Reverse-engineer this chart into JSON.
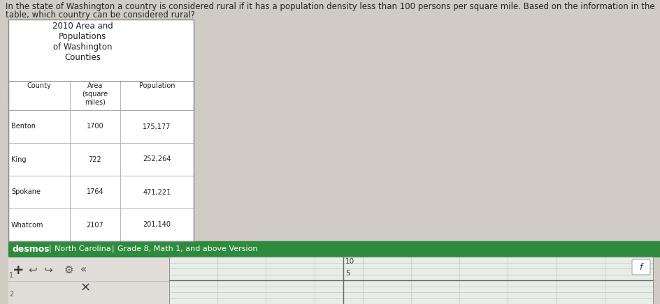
{
  "bg_color": "#d0ccc4",
  "question_line1": "In the state of Washington a country is considered rural if it has a population density less than 100 persons per square mile. Based on the information in the",
  "question_line2": "table, which country can be considered rural?",
  "question_fontsize": 8.5,
  "table_title": "2010 Area and\nPopulations\nof Washington\nCounties",
  "col_headers": [
    "County",
    "Area\n(square\nmiles)",
    "Population"
  ],
  "rows": [
    [
      "Benton",
      "1700",
      "175,177"
    ],
    [
      "King",
      "722",
      "252,264"
    ],
    [
      "Spokane",
      "1764",
      "471,221"
    ],
    [
      "Whatcom",
      "2107",
      "201,140"
    ]
  ],
  "desmos_bar_color": "#2e8b3e",
  "desmos_text": "desmos",
  "nc_text": "North Carolina",
  "grade_text": "Grade 8, Math 1, and above Version",
  "grid_line_color": "#b8ccb8",
  "grid_bg": "#e4ede4",
  "toolbar_bg": "#e0ddd8",
  "graph_panel_bg": "#e8ede8",
  "axis_color": "#666666",
  "y_label_10": "10",
  "y_label_5": "5",
  "f_label": "f"
}
